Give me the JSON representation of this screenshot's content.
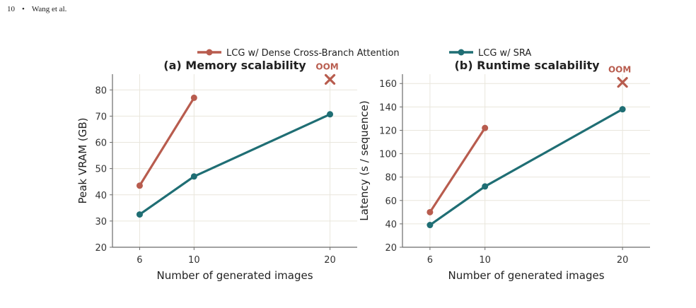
{
  "header": {
    "page_number": "10",
    "bullet": "•",
    "authors": "Wang et al."
  },
  "colors": {
    "dense": "#b85c4e",
    "sra": "#1f6e74",
    "grid": "#e9e6dc",
    "axis": "#6b6b6b"
  },
  "legend": [
    {
      "label": "LCG w/ Dense Cross-Branch Attention",
      "color": "#b85c4e"
    },
    {
      "label": "LCG w/ SRA",
      "color": "#1f6e74"
    }
  ],
  "chart_data": [
    {
      "type": "line",
      "title": "(a) Memory scalability",
      "xlabel": "Number of generated images",
      "ylabel": "Peak VRAM (GB)",
      "x_ticks": [
        6,
        10,
        20
      ],
      "y_ticks": [
        20,
        30,
        40,
        50,
        60,
        70,
        80
      ],
      "ylim": [
        20,
        86
      ],
      "series": [
        {
          "name": "LCG w/ Dense Cross-Branch Attention",
          "color": "#b85c4e",
          "x": [
            6,
            10
          ],
          "y": [
            43.5,
            77
          ]
        },
        {
          "name": "LCG w/ SRA",
          "color": "#1f6e74",
          "x": [
            6,
            10,
            20
          ],
          "y": [
            32.5,
            47,
            70.7
          ]
        }
      ],
      "annotation": {
        "text": "OOM",
        "x": 20,
        "y": 84
      }
    },
    {
      "type": "line",
      "title": "(b) Runtime scalability",
      "xlabel": "Number of generated images",
      "ylabel": "Latency (s / sequence)",
      "x_ticks": [
        6,
        10,
        20
      ],
      "y_ticks": [
        20,
        40,
        60,
        80,
        100,
        120,
        140,
        160
      ],
      "ylim": [
        20,
        168
      ],
      "series": [
        {
          "name": "LCG w/ Dense Cross-Branch Attention",
          "color": "#b85c4e",
          "x": [
            6,
            10
          ],
          "y": [
            50,
            122
          ]
        },
        {
          "name": "LCG w/ SRA",
          "color": "#1f6e74",
          "x": [
            6,
            10,
            20
          ],
          "y": [
            39,
            72,
            138
          ]
        }
      ],
      "annotation": {
        "text": "OOM",
        "x": 20,
        "y": 161
      }
    }
  ]
}
